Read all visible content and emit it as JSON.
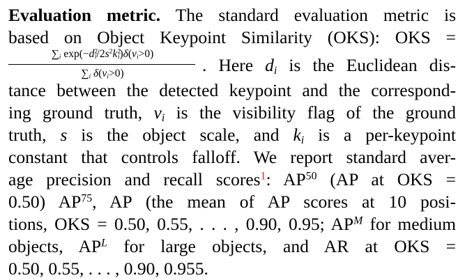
{
  "paragraph": {
    "heading": "Evaluation metric.",
    "line1_text": "The standard evaluation metric is",
    "line2_text": "based on Object Keypoint Similarity (OKS): OKS",
    "line2_equals": "=",
    "fraction_numerator": "∑i exp(−di²/2s²ki²)δ(vi>0)",
    "fraction_denominator": "∑i δ(vi>0)",
    "line3_after_fraction": ". Here di is the Euclidean dis-",
    "line4": "tance between the detected keypoint and the correspond-",
    "line5": "ing ground truth, vi is the visibility flag of the ground",
    "line6": "truth, s is the object scale, and ki is a per-keypoint",
    "line7": "constant that controls falloff.  We report standard aver-",
    "line8_pre": "age precision and recall scores",
    "footnote_marker": "1",
    "line8_post": ": AP50 (AP at OKS =",
    "line9": "0.50) AP75, AP (the mean of AP scores at 10 posi-",
    "line10": "tions, OKS = 0.50, 0.55, . . . , 0.90, 0.95; APM for medium",
    "line11": "objects, APL for large objects, and AR at OKS =",
    "line12": "0.50, 0.55, . . . , 0.90, 0.955."
  }
}
